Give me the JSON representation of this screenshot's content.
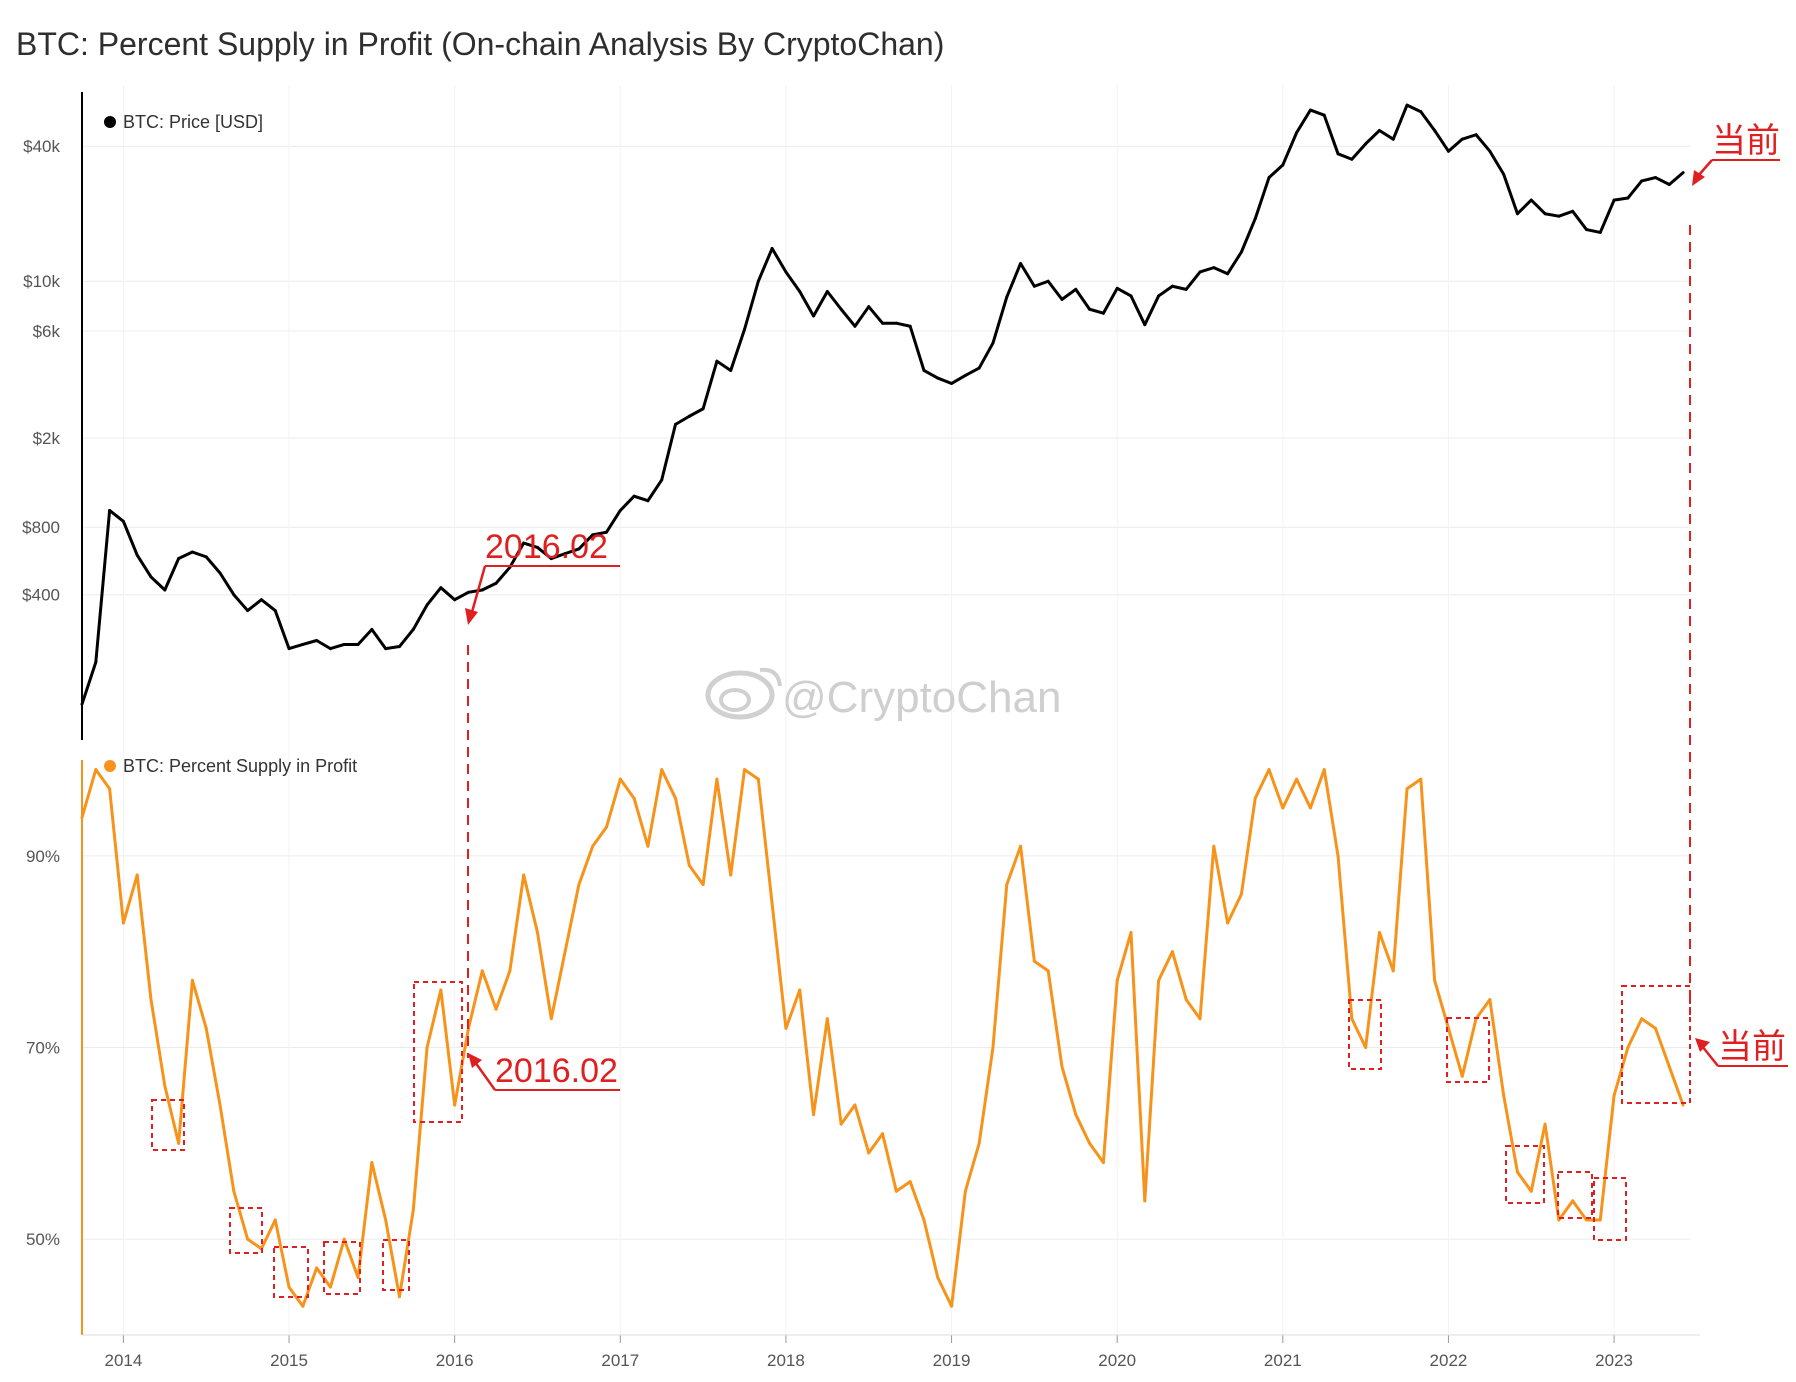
{
  "title": "BTC: Percent Supply in Profit (On-chain Analysis By CryptoChan)",
  "watermark": "@CryptoChan",
  "colors": {
    "price": "#000000",
    "supply": "#f7931a",
    "annotation": "#e02020",
    "grid": "#ececec"
  },
  "chart_data": [
    {
      "type": "line",
      "yscale": "log",
      "legend": "BTC: Price [USD]",
      "legend_position": "top-left",
      "ylim": [
        90,
        75000
      ],
      "yticks": [
        {
          "value": 400,
          "label": "$400"
        },
        {
          "value": 800,
          "label": "$800"
        },
        {
          "value": 2000,
          "label": "$2k"
        },
        {
          "value": 6000,
          "label": "$6k"
        },
        {
          "value": 10000,
          "label": "$10k"
        },
        {
          "value": 40000,
          "label": "$40k"
        }
      ],
      "series": [
        {
          "x": [
            "2013-10",
            "2013-11",
            "2013-12",
            "2014-01",
            "2014-02",
            "2014-03",
            "2014-04",
            "2014-05",
            "2014-06",
            "2014-07",
            "2014-08",
            "2014-09",
            "2014-10",
            "2014-11",
            "2014-12",
            "2015-01",
            "2015-02",
            "2015-03",
            "2015-04",
            "2015-05",
            "2015-06",
            "2015-07",
            "2015-08",
            "2015-09",
            "2015-10",
            "2015-11",
            "2015-12",
            "2016-01",
            "2016-02",
            "2016-03",
            "2016-04",
            "2016-05",
            "2016-06",
            "2016-07",
            "2016-08",
            "2016-09",
            "2016-10",
            "2016-11",
            "2016-12",
            "2017-01",
            "2017-02",
            "2017-03",
            "2017-04",
            "2017-05",
            "2017-06",
            "2017-07",
            "2017-08",
            "2017-09",
            "2017-10",
            "2017-11",
            "2017-12",
            "2018-01",
            "2018-02",
            "2018-03",
            "2018-04",
            "2018-05",
            "2018-06",
            "2018-07",
            "2018-08",
            "2018-09",
            "2018-10",
            "2018-11",
            "2018-12",
            "2019-01",
            "2019-02",
            "2019-03",
            "2019-04",
            "2019-05",
            "2019-06",
            "2019-07",
            "2019-08",
            "2019-09",
            "2019-10",
            "2019-11",
            "2019-12",
            "2020-01",
            "2020-02",
            "2020-03",
            "2020-04",
            "2020-05",
            "2020-06",
            "2020-07",
            "2020-08",
            "2020-09",
            "2020-10",
            "2020-11",
            "2020-12",
            "2021-01",
            "2021-02",
            "2021-03",
            "2021-04",
            "2021-05",
            "2021-06",
            "2021-07",
            "2021-08",
            "2021-09",
            "2021-10",
            "2021-11",
            "2021-12",
            "2022-01",
            "2022-02",
            "2022-03",
            "2022-04",
            "2022-05",
            "2022-06",
            "2022-07",
            "2022-08",
            "2022-09",
            "2022-10",
            "2022-11",
            "2022-12",
            "2023-01",
            "2023-02",
            "2023-03",
            "2023-04",
            "2023-05",
            "2023-06"
          ],
          "values": [
            130,
            200,
            950,
            850,
            600,
            480,
            420,
            580,
            620,
            590,
            500,
            400,
            340,
            380,
            340,
            230,
            240,
            250,
            230,
            240,
            240,
            280,
            230,
            235,
            280,
            360,
            430,
            380,
            410,
            420,
            450,
            530,
            680,
            650,
            580,
            610,
            640,
            740,
            760,
            950,
            1100,
            1050,
            1300,
            2300,
            2500,
            2700,
            4400,
            4000,
            6100,
            10000,
            14000,
            11000,
            9000,
            7000,
            9000,
            7500,
            6300,
            7700,
            6500,
            6500,
            6300,
            4000,
            3700,
            3500,
            3800,
            4100,
            5300,
            8500,
            12000,
            9500,
            10000,
            8300,
            9200,
            7500,
            7200,
            9300,
            8600,
            6400,
            8600,
            9500,
            9200,
            11000,
            11500,
            10800,
            13500,
            19000,
            29000,
            33000,
            46000,
            58000,
            55000,
            37000,
            35000,
            41000,
            47000,
            43000,
            61000,
            57000,
            47000,
            38000,
            43000,
            45000,
            38000,
            30000,
            20000,
            23000,
            20000,
            19500,
            20500,
            17000,
            16500,
            23000,
            23500,
            28000,
            29000,
            27000,
            30500
          ]
        }
      ]
    },
    {
      "type": "line",
      "legend": "BTC: Percent Supply in Profit",
      "legend_position": "top-left",
      "ylim": [
        40,
        100
      ],
      "yticks": [
        {
          "value": 50,
          "label": "50%"
        },
        {
          "value": 70,
          "label": "70%"
        },
        {
          "value": 90,
          "label": "90%"
        }
      ],
      "xticks": [
        "2014",
        "2015",
        "2016",
        "2017",
        "2018",
        "2019",
        "2020",
        "2021",
        "2022",
        "2023"
      ],
      "series": [
        {
          "x": [
            "2013-10",
            "2013-11",
            "2013-12",
            "2014-01",
            "2014-02",
            "2014-03",
            "2014-04",
            "2014-05",
            "2014-06",
            "2014-07",
            "2014-08",
            "2014-09",
            "2014-10",
            "2014-11",
            "2014-12",
            "2015-01",
            "2015-02",
            "2015-03",
            "2015-04",
            "2015-05",
            "2015-06",
            "2015-07",
            "2015-08",
            "2015-09",
            "2015-10",
            "2015-11",
            "2015-12",
            "2016-01",
            "2016-02",
            "2016-03",
            "2016-04",
            "2016-05",
            "2016-06",
            "2016-07",
            "2016-08",
            "2016-09",
            "2016-10",
            "2016-11",
            "2016-12",
            "2017-01",
            "2017-02",
            "2017-03",
            "2017-04",
            "2017-05",
            "2017-06",
            "2017-07",
            "2017-08",
            "2017-09",
            "2017-10",
            "2017-11",
            "2017-12",
            "2018-01",
            "2018-02",
            "2018-03",
            "2018-04",
            "2018-05",
            "2018-06",
            "2018-07",
            "2018-08",
            "2018-09",
            "2018-10",
            "2018-11",
            "2018-12",
            "2019-01",
            "2019-02",
            "2019-03",
            "2019-04",
            "2019-05",
            "2019-06",
            "2019-07",
            "2019-08",
            "2019-09",
            "2019-10",
            "2019-11",
            "2019-12",
            "2020-01",
            "2020-02",
            "2020-03",
            "2020-04",
            "2020-05",
            "2020-06",
            "2020-07",
            "2020-08",
            "2020-09",
            "2020-10",
            "2020-11",
            "2020-12",
            "2021-01",
            "2021-02",
            "2021-03",
            "2021-04",
            "2021-05",
            "2021-06",
            "2021-07",
            "2021-08",
            "2021-09",
            "2021-10",
            "2021-11",
            "2021-12",
            "2022-01",
            "2022-02",
            "2022-03",
            "2022-04",
            "2022-05",
            "2022-06",
            "2022-07",
            "2022-08",
            "2022-09",
            "2022-10",
            "2022-11",
            "2022-12",
            "2023-01",
            "2023-02",
            "2023-03",
            "2023-04",
            "2023-05",
            "2023-06"
          ],
          "values": [
            94,
            99,
            97,
            83,
            88,
            75,
            66,
            60,
            77,
            72,
            64,
            55,
            50,
            49,
            52,
            45,
            43,
            47,
            45,
            50,
            46,
            58,
            52,
            44,
            53,
            70,
            76,
            64,
            72,
            78,
            74,
            78,
            88,
            82,
            73,
            80,
            87,
            91,
            93,
            98,
            96,
            91,
            99,
            96,
            89,
            87,
            98,
            88,
            99,
            98,
            85,
            72,
            76,
            63,
            73,
            62,
            64,
            59,
            61,
            55,
            56,
            52,
            46,
            43,
            55,
            60,
            70,
            87,
            91,
            79,
            78,
            68,
            63,
            60,
            58,
            77,
            82,
            54,
            77,
            80,
            75,
            73,
            91,
            83,
            86,
            96,
            99,
            95,
            98,
            95,
            99,
            90,
            73,
            70,
            82,
            78,
            97,
            98,
            77,
            72,
            67,
            73,
            75,
            65,
            57,
            55,
            62,
            52,
            54,
            52,
            52,
            65,
            70,
            73,
            72,
            68,
            64
          ]
        }
      ]
    }
  ],
  "annotations": {
    "label_2016": "2016.02",
    "label_2016_lower": "2016.02",
    "label_current": "当前",
    "label_current_lower": "当前"
  }
}
